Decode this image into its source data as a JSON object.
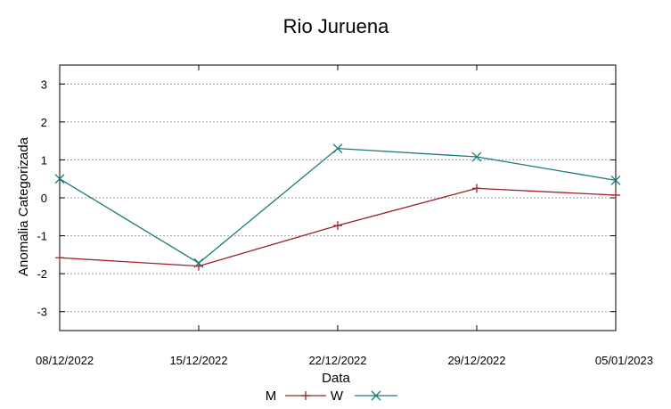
{
  "chart_data": {
    "type": "line",
    "title": "Rio Juruena",
    "xlabel": "Data",
    "ylabel": "Anomalia Categorizada",
    "categories": [
      "08/12/2022",
      "15/12/2022",
      "22/12/2022",
      "29/12/2022",
      "05/01/2023"
    ],
    "ylim": [
      -3.5,
      3.5
    ],
    "yticks": [
      3,
      2,
      1,
      0,
      -1,
      -2,
      -3
    ],
    "grid": true,
    "legend_position": "bottom",
    "series": [
      {
        "name": "M",
        "marker": "plus",
        "color": "#a0202a",
        "values": [
          -1.58,
          -1.8,
          -0.73,
          0.25,
          0.07
        ]
      },
      {
        "name": "W",
        "marker": "cross",
        "color": "#1a7b7b",
        "values": [
          0.5,
          -1.72,
          1.3,
          1.08,
          0.46
        ]
      }
    ]
  }
}
